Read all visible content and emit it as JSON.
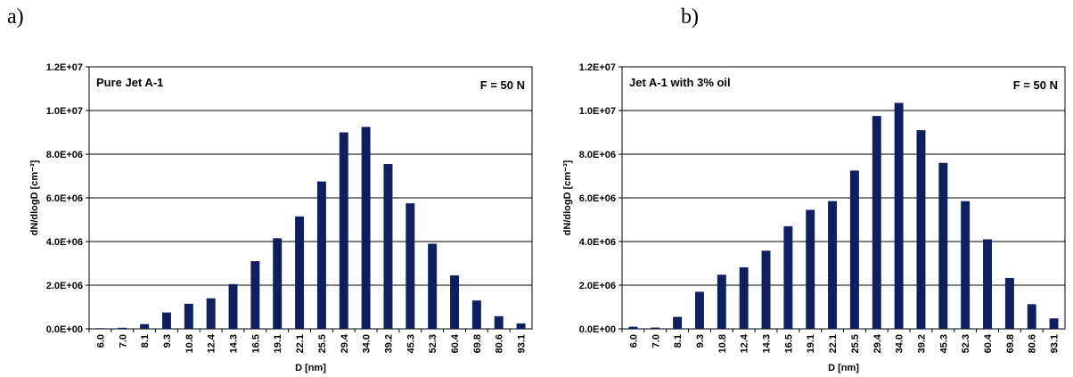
{
  "panel_labels": [
    "a)",
    "b)"
  ],
  "colors": {
    "bar": "#0d1f5c",
    "grid": "#000000"
  },
  "chart_data": [
    {
      "type": "bar",
      "panel": "a)",
      "annotation_left": "Pure Jet A-1",
      "annotation_right": "F = 50 N",
      "xlabel": "D [nm]",
      "ylabel": "dN/dlogD [cm⁻³]",
      "ylim": [
        0,
        12000000
      ],
      "yticks": [
        "0.0E+00",
        "2.0E+06",
        "4.0E+06",
        "6.0E+06",
        "8.0E+06",
        "1.0E+07",
        "1.2E+07"
      ],
      "grid": true,
      "categories": [
        "6.0",
        "7.0",
        "8.1",
        "9.3",
        "10.8",
        "12.4",
        "14.3",
        "16.5",
        "19.1",
        "22.1",
        "25.5",
        "29.4",
        "34.0",
        "39.2",
        "45.3",
        "52.3",
        "60.4",
        "69.8",
        "80.6",
        "93.1"
      ],
      "values": [
        30000,
        50000,
        220000,
        750000,
        1150000,
        1400000,
        2050000,
        3100000,
        4150000,
        5150000,
        6750000,
        9000000,
        9250000,
        7550000,
        5750000,
        3900000,
        2450000,
        1300000,
        580000,
        250000
      ]
    },
    {
      "type": "bar",
      "panel": "b)",
      "annotation_left": "Jet A-1 with 3% oil",
      "annotation_right": "F = 50 N",
      "xlabel": "D [nm]",
      "ylabel": "dN/dlogD [cm⁻³]",
      "ylim": [
        0,
        12000000
      ],
      "yticks": [
        "0.0E+00",
        "2.0E+06",
        "4.0E+06",
        "6.0E+06",
        "8.0E+06",
        "1.0E+07",
        "1.2E+07"
      ],
      "grid": true,
      "categories": [
        "6.0",
        "7.0",
        "8.1",
        "9.3",
        "10.8",
        "12.4",
        "14.3",
        "16.5",
        "19.1",
        "22.1",
        "25.5",
        "29.4",
        "34.0",
        "39.2",
        "45.3",
        "52.3",
        "60.4",
        "69.8",
        "80.6",
        "93.1"
      ],
      "values": [
        100000,
        60000,
        550000,
        1700000,
        2480000,
        2820000,
        3580000,
        4700000,
        5450000,
        5850000,
        7250000,
        9750000,
        10350000,
        9100000,
        7600000,
        5850000,
        4100000,
        2330000,
        1130000,
        480000
      ]
    }
  ]
}
